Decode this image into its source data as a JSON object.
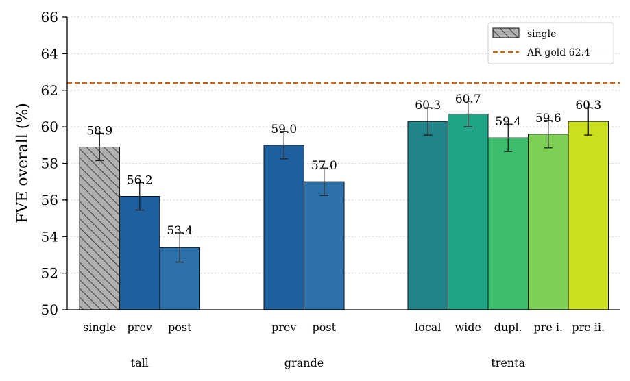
{
  "chart_data": {
    "type": "bar",
    "ylabel": "FVE overall (%)",
    "ylim": [
      50,
      66
    ],
    "yticks": [
      50,
      52,
      54,
      56,
      58,
      60,
      62,
      64,
      66
    ],
    "grid": "horizontal dotted",
    "legend": {
      "placement": "top-right",
      "entries": [
        {
          "label": "single",
          "style": "hatched-gray-box"
        },
        {
          "label": "AR-gold 62.4",
          "style": "dashed-orange-line"
        }
      ]
    },
    "reference_line": {
      "label": "AR-gold 62.4",
      "value": 62.4,
      "color": "#d55e00"
    },
    "groups": [
      {
        "name": "tall",
        "bars": [
          {
            "label": "single",
            "value": 58.9,
            "err": 0.75,
            "value_label": "58.9",
            "color": "#b0b0b0",
            "hatched": true
          },
          {
            "label": "prev",
            "value": 56.2,
            "err": 0.75,
            "value_label": "56.2",
            "color": "#1f5f9e",
            "hatched": false
          },
          {
            "label": "post",
            "value": 53.4,
            "err": 0.8,
            "value_label": "53.4",
            "color": "#2c70aa",
            "hatched": false
          }
        ]
      },
      {
        "name": "grande",
        "bars": [
          {
            "label": "prev",
            "value": 59.0,
            "err": 0.75,
            "value_label": "59.0",
            "color": "#1f5f9e",
            "hatched": false
          },
          {
            "label": "post",
            "value": 57.0,
            "err": 0.75,
            "value_label": "57.0",
            "color": "#2c70aa",
            "hatched": false
          }
        ]
      },
      {
        "name": "trenta",
        "bars": [
          {
            "label": "local",
            "value": 60.3,
            "err": 0.75,
            "value_label": "60.3",
            "color": "#23848a",
            "hatched": false
          },
          {
            "label": "wide",
            "value": 60.7,
            "err": 0.7,
            "value_label": "60.7",
            "color": "#20a386",
            "hatched": false
          },
          {
            "label": "dupl.",
            "value": 59.4,
            "err": 0.75,
            "value_label": "59.4",
            "color": "#3dbd6e",
            "hatched": false
          },
          {
            "label": "pre i.",
            "value": 59.6,
            "err": 0.75,
            "value_label": "59.6",
            "color": "#7dd055",
            "hatched": false
          },
          {
            "label": "pre ii.",
            "value": 60.3,
            "err": 0.75,
            "value_label": "60.3",
            "color": "#c9df20",
            "hatched": false
          }
        ]
      }
    ]
  }
}
